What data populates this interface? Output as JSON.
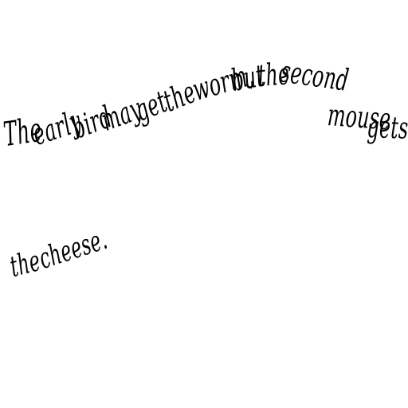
{
  "document": {
    "words": [
      "The",
      "early",
      "bird",
      "may",
      "get",
      "the",
      "worm,",
      "but",
      "the",
      "second",
      "mouse",
      "gets",
      "the",
      "cheese."
    ]
  }
}
